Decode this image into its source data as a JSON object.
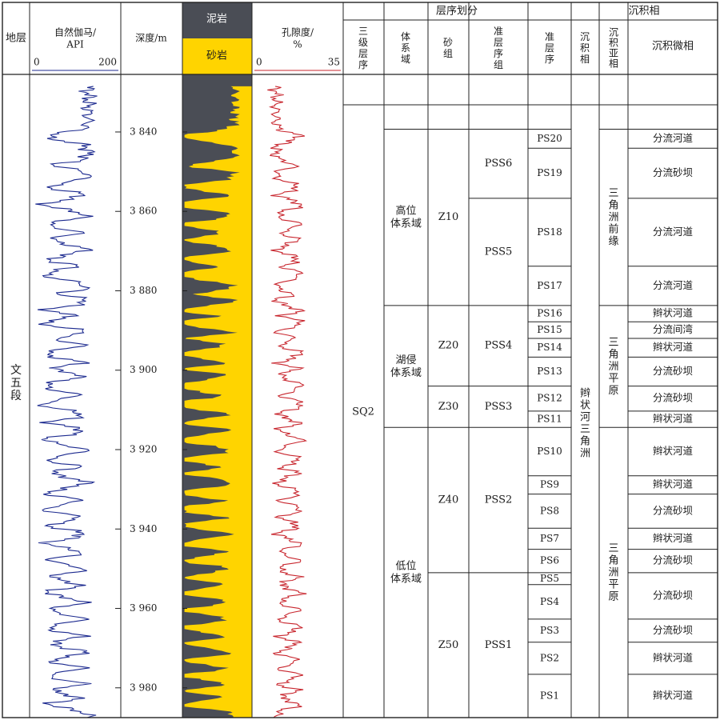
{
  "headers": {
    "stratum": "地层",
    "gr": "自然伽马/\nAPI",
    "gr_min": "0",
    "gr_max": "200",
    "depth": "深度/m",
    "mudstone": "泥岩",
    "sandstone": "砂岩",
    "porosity": "孔隙度/\n%",
    "por_min": "0",
    "por_max": "35",
    "sequence_division": "层序划分",
    "third_order": "三\n级\n层\n序",
    "system_tract": "体\n系\n域",
    "sand_group": "砂\n组",
    "parasequence_set": "准\n层\n序\n组",
    "parasequence": "准\n层\n序",
    "sed_facies_group": "沉积相",
    "facies": "沉\n积\n相",
    "subfacies": "沉\n积\n亚\n相",
    "microfacies": "沉积微相"
  },
  "stratum_label": "文\n\n五\n\n段",
  "sequence_label": "SQ2",
  "colors": {
    "gr_curve": "#1c2a8f",
    "porosity_curve": "#c8262e",
    "mudstone": "#4a4d55",
    "sandstone": "#ffd400",
    "grid": "#222222"
  },
  "chart_data": {
    "type": "well-log",
    "depth_unit": "m",
    "depth_ticks": [
      "3 840",
      "3 860",
      "3 880",
      "3 900",
      "3 920",
      "3 940",
      "3 960",
      "3 980"
    ],
    "depth_tick_values": [
      3840,
      3860,
      3880,
      3900,
      3920,
      3940,
      3960,
      3980
    ],
    "depth_range": [
      3825.5,
      3987.5
    ],
    "gr_range": [
      0,
      200
    ],
    "porosity_range": [
      0,
      35
    ],
    "sand_beds": [
      {
        "top": 3840.0,
        "base": 3842.5,
        "center": 3841.2,
        "strength": 0.85
      },
      {
        "top": 3847.6,
        "base": 3849.2,
        "center": 3848.4,
        "strength": 0.7
      },
      {
        "top": 3852.6,
        "base": 3855.0,
        "center": 3853.8,
        "strength": 0.8
      },
      {
        "top": 3856.9,
        "base": 3859.7,
        "center": 3858.3,
        "strength": 0.9
      },
      {
        "top": 3862.2,
        "base": 3864.6,
        "center": 3863.4,
        "strength": 0.85
      },
      {
        "top": 3865.9,
        "base": 3868.5,
        "center": 3867.2,
        "strength": 0.75
      },
      {
        "top": 3870.8,
        "base": 3873.4,
        "center": 3872.1,
        "strength": 0.8
      },
      {
        "top": 3874.3,
        "base": 3877.5,
        "center": 3875.9,
        "strength": 0.9
      },
      {
        "top": 3880.2,
        "base": 3881.3,
        "center": 3880.8,
        "strength": 0.6
      },
      {
        "top": 3883.9,
        "base": 3885.9,
        "center": 3884.9,
        "strength": 0.85
      },
      {
        "top": 3886.9,
        "base": 3889.3,
        "center": 3888.1,
        "strength": 0.95
      },
      {
        "top": 3891.4,
        "base": 3892.8,
        "center": 3892.1,
        "strength": 0.7
      },
      {
        "top": 3894.5,
        "base": 3897.3,
        "center": 3895.9,
        "strength": 0.9
      },
      {
        "top": 3898.9,
        "base": 3900.5,
        "center": 3899.7,
        "strength": 0.75
      },
      {
        "top": 3902.2,
        "base": 3905.8,
        "center": 3904.0,
        "strength": 0.9
      },
      {
        "top": 3907.0,
        "base": 3910.2,
        "center": 3908.6,
        "strength": 0.95
      },
      {
        "top": 3912.2,
        "base": 3914.2,
        "center": 3913.2,
        "strength": 0.8
      },
      {
        "top": 3916.2,
        "base": 3919.0,
        "center": 3917.6,
        "strength": 0.9
      },
      {
        "top": 3921.3,
        "base": 3923.7,
        "center": 3922.5,
        "strength": 0.85
      },
      {
        "top": 3924.9,
        "base": 3927.1,
        "center": 3926.0,
        "strength": 0.75
      },
      {
        "top": 3929.6,
        "base": 3932.2,
        "center": 3930.9,
        "strength": 0.85
      },
      {
        "top": 3933.6,
        "base": 3936.4,
        "center": 3935.0,
        "strength": 0.9
      },
      {
        "top": 3937.9,
        "base": 3940.3,
        "center": 3939.1,
        "strength": 0.8
      },
      {
        "top": 3942.4,
        "base": 3945.0,
        "center": 3943.7,
        "strength": 0.85
      },
      {
        "top": 3946.7,
        "base": 3949.1,
        "center": 3947.9,
        "strength": 0.8
      },
      {
        "top": 3951.0,
        "base": 3953.4,
        "center": 3952.2,
        "strength": 0.75
      },
      {
        "top": 3954.8,
        "base": 3957.4,
        "center": 3956.1,
        "strength": 0.85
      },
      {
        "top": 3959.3,
        "base": 3961.7,
        "center": 3960.5,
        "strength": 0.8
      },
      {
        "top": 3963.6,
        "base": 3966.2,
        "center": 3964.9,
        "strength": 0.85
      },
      {
        "top": 3967.7,
        "base": 3970.1,
        "center": 3968.9,
        "strength": 0.75
      },
      {
        "top": 3972.2,
        "base": 3974.2,
        "center": 3973.2,
        "strength": 0.8
      },
      {
        "top": 3975.9,
        "base": 3978.1,
        "center": 3977.0,
        "strength": 0.85
      },
      {
        "top": 3979.8,
        "base": 3981.8,
        "center": 3980.8,
        "strength": 0.75
      },
      {
        "top": 3983.1,
        "base": 3985.3,
        "center": 3984.2,
        "strength": 0.8
      }
    ]
  },
  "system_tracts": [
    {
      "label": "高位\n体系域",
      "top": 3839.3,
      "base": 3883.7
    },
    {
      "label": "湖侵\n体系域",
      "top": 3883.7,
      "base": 3914.4
    },
    {
      "label": "低位\n体系域",
      "top": 3914.4,
      "base": 3987.5
    }
  ],
  "sand_groups": [
    {
      "label": "Z10",
      "top": 3839.3,
      "base": 3883.7
    },
    {
      "label": "Z20",
      "top": 3883.7,
      "base": 3904.0
    },
    {
      "label": "Z30",
      "top": 3904.0,
      "base": 3914.4
    },
    {
      "label": "Z40",
      "top": 3914.4,
      "base": 3951.0
    },
    {
      "label": "Z50",
      "top": 3951.0,
      "base": 3987.5
    }
  ],
  "parasequence_sets": [
    {
      "label": "PSS6",
      "top": 3839.3,
      "base": 3856.7
    },
    {
      "label": "PSS5",
      "top": 3856.7,
      "base": 3883.7
    },
    {
      "label": "PSS4",
      "top": 3883.7,
      "base": 3904.0
    },
    {
      "label": "PSS3",
      "top": 3904.0,
      "base": 3914.4
    },
    {
      "label": "PSS2",
      "top": 3914.4,
      "base": 3951.0
    },
    {
      "label": "PSS1",
      "top": 3951.0,
      "base": 3987.5
    }
  ],
  "parasequences": [
    {
      "label": "PS20",
      "top": 3839.3,
      "base": 3844.1
    },
    {
      "label": "PS19",
      "top": 3844.1,
      "base": 3856.7
    },
    {
      "label": "PS18",
      "top": 3856.7,
      "base": 3873.8
    },
    {
      "label": "PS17",
      "top": 3873.8,
      "base": 3883.7
    },
    {
      "label": "PS16",
      "top": 3883.7,
      "base": 3887.8
    },
    {
      "label": "PS15",
      "top": 3887.8,
      "base": 3892.0
    },
    {
      "label": "PS14",
      "top": 3892.0,
      "base": 3896.7
    },
    {
      "label": "PS13",
      "top": 3896.7,
      "base": 3904.0
    },
    {
      "label": "PS12",
      "top": 3904.0,
      "base": 3910.3
    },
    {
      "label": "PS11",
      "top": 3910.3,
      "base": 3914.4
    },
    {
      "label": "PS10",
      "top": 3914.4,
      "base": 3926.6
    },
    {
      "label": "PS9",
      "top": 3926.6,
      "base": 3931.2
    },
    {
      "label": "PS8",
      "top": 3931.2,
      "base": 3939.8
    },
    {
      "label": "PS7",
      "top": 3939.8,
      "base": 3945.1
    },
    {
      "label": "PS6",
      "top": 3945.1,
      "base": 3951.0
    },
    {
      "label": "PS5",
      "top": 3951.0,
      "base": 3954.0
    },
    {
      "label": "PS4",
      "top": 3954.0,
      "base": 3962.7
    },
    {
      "label": "PS3",
      "top": 3962.7,
      "base": 3968.5
    },
    {
      "label": "PS2",
      "top": 3968.5,
      "base": 3976.6
    },
    {
      "label": "PS1",
      "top": 3976.6,
      "base": 3987.5
    }
  ],
  "facies": {
    "label": "辫\n状\n河\n三\n角\n洲",
    "top": 3839.3,
    "base": 3987.5
  },
  "subfacies": [
    {
      "label": "三\n角\n洲\n前\n缘",
      "top": 3839.3,
      "base": 3883.7
    },
    {
      "label": "三\n角\n洲\n平\n原",
      "top": 3883.7,
      "base": 3914.4
    },
    {
      "label": "三\n角\n洲\n平\n原",
      "top": 3914.4,
      "base": 3987.5
    }
  ],
  "microfacies": [
    {
      "label": "分流河道",
      "top": 3839.3,
      "base": 3844.1
    },
    {
      "label": "分流砂坝",
      "top": 3844.1,
      "base": 3856.7
    },
    {
      "label": "分流河道",
      "top": 3856.7,
      "base": 3873.8
    },
    {
      "label": "分流河道",
      "top": 3873.8,
      "base": 3883.7
    },
    {
      "label": "辫状河道",
      "top": 3883.7,
      "base": 3887.8
    },
    {
      "label": "分流间湾",
      "top": 3887.8,
      "base": 3892.0
    },
    {
      "label": "辫状河道",
      "top": 3892.0,
      "base": 3896.7
    },
    {
      "label": "分流砂坝",
      "top": 3896.7,
      "base": 3904.0
    },
    {
      "label": "分流砂坝",
      "top": 3904.0,
      "base": 3910.3
    },
    {
      "label": "辫状河道",
      "top": 3910.3,
      "base": 3914.4
    },
    {
      "label": "辫状河道",
      "top": 3914.4,
      "base": 3926.6
    },
    {
      "label": "辫状河道",
      "top": 3926.6,
      "base": 3931.2
    },
    {
      "label": "分流砂坝",
      "top": 3931.2,
      "base": 3939.8
    },
    {
      "label": "辫状河道",
      "top": 3939.8,
      "base": 3945.1
    },
    {
      "label": "分流砂坝",
      "top": 3945.1,
      "base": 3951.0
    },
    {
      "label": "分流砂坝",
      "top": 3951.0,
      "base": 3962.7
    },
    {
      "label": "分流砂坝",
      "top": 3962.7,
      "base": 3968.5
    },
    {
      "label": "辫状河道",
      "top": 3968.5,
      "base": 3976.6
    },
    {
      "label": "辫状河道",
      "top": 3976.6,
      "base": 3987.5
    }
  ]
}
